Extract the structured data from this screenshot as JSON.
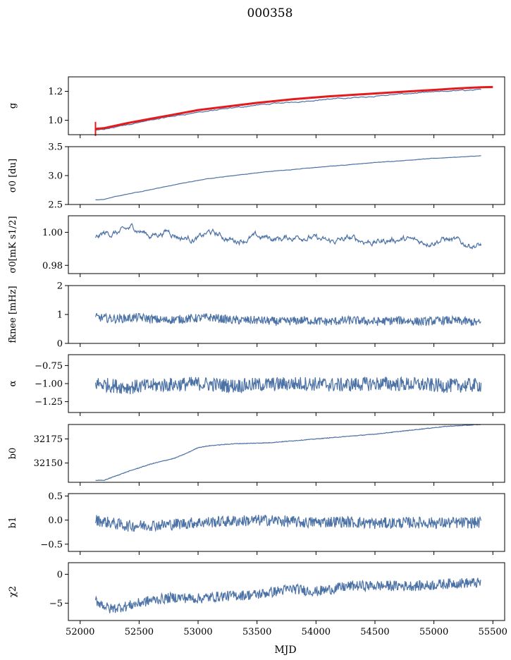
{
  "title": "000358",
  "xlabel": "MJD",
  "colors": {
    "series": "#4c72a6",
    "model": "#e41a1c"
  },
  "chart_data": [
    {
      "type": "line",
      "ylabel": "g",
      "xlim": [
        51900,
        55600
      ],
      "ylim": [
        0.9,
        1.3
      ],
      "yticks": [
        "1.0",
        "1.2"
      ],
      "ytick_values": [
        1.0,
        1.2
      ],
      "series": [
        {
          "color": "#4c72a6",
          "x": [
            52130,
            52200,
            52400,
            52600,
            52800,
            53000,
            53200,
            53500,
            53800,
            54100,
            54400,
            54700,
            55000,
            55200,
            55400
          ],
          "y": [
            0.93,
            0.935,
            0.97,
            1.0,
            1.03,
            1.055,
            1.075,
            1.105,
            1.125,
            1.145,
            1.16,
            1.18,
            1.195,
            1.205,
            1.21
          ]
        },
        {
          "color": "#e41a1c",
          "x": [
            52130,
            52200,
            52400,
            52600,
            52800,
            53000,
            53200,
            53500,
            53800,
            54100,
            54400,
            54700,
            55000,
            55200,
            55400,
            55500
          ],
          "y": [
            0.94,
            0.945,
            0.98,
            1.01,
            1.04,
            1.07,
            1.09,
            1.12,
            1.145,
            1.165,
            1.18,
            1.195,
            1.21,
            1.22,
            1.228,
            1.23
          ]
        }
      ]
    },
    {
      "type": "line",
      "ylabel": "σ0 [du]",
      "xlim": [
        51900,
        55600
      ],
      "ylim": [
        2.5,
        3.5
      ],
      "yticks": [
        "2.5",
        "3.0",
        "3.5"
      ],
      "ytick_values": [
        2.5,
        3.0,
        3.5
      ],
      "series": [
        {
          "color": "#4c72a6",
          "x": [
            52130,
            52200,
            52300,
            52500,
            52800,
            53000,
            53300,
            53600,
            54000,
            54400,
            54800,
            55100,
            55400
          ],
          "y": [
            2.58,
            2.59,
            2.64,
            2.72,
            2.84,
            2.92,
            3.0,
            3.07,
            3.14,
            3.21,
            3.27,
            3.31,
            3.34
          ]
        }
      ]
    },
    {
      "type": "line",
      "ylabel": "σ0[mK s1/2]",
      "xlim": [
        51900,
        55600
      ],
      "ylim": [
        0.975,
        1.01
      ],
      "yticks": [
        "0.98",
        "1.00"
      ],
      "ytick_values": [
        0.98,
        1.0
      ],
      "series": [
        {
          "color": "#4c72a6",
          "x": [
            52130,
            52200,
            52350,
            52450,
            52600,
            52750,
            52850,
            53000,
            53100,
            53300,
            53500,
            53700,
            53900,
            54100,
            54300,
            54500,
            54700,
            54900,
            55100,
            55250,
            55400
          ],
          "y": [
            0.996,
            0.999,
            1.0,
            1.003,
            0.998,
            1.001,
            0.997,
            0.996,
            1.0,
            0.995,
            0.997,
            0.996,
            0.998,
            0.994,
            0.996,
            0.994,
            0.996,
            0.994,
            0.996,
            0.993,
            0.992
          ]
        }
      ]
    },
    {
      "type": "line",
      "ylabel": "fknee [mHz]",
      "xlim": [
        51900,
        55600
      ],
      "ylim": [
        0,
        2
      ],
      "yticks": [
        "0",
        "1",
        "2"
      ],
      "ytick_values": [
        0,
        1,
        2
      ],
      "series": [
        {
          "color": "#4c72a6",
          "x": [
            52130,
            52300,
            52500,
            52700,
            52900,
            53100,
            53300,
            53500,
            53700,
            53900,
            54100,
            54300,
            54500,
            54700,
            54900,
            55100,
            55300,
            55400
          ],
          "y": [
            0.9,
            0.85,
            0.9,
            0.8,
            0.85,
            0.9,
            0.8,
            0.8,
            0.75,
            0.8,
            0.75,
            0.8,
            0.75,
            0.8,
            0.75,
            0.8,
            0.75,
            0.7
          ]
        }
      ]
    },
    {
      "type": "line",
      "ylabel": "α",
      "xlim": [
        51900,
        55600
      ],
      "ylim": [
        -1.4,
        -0.6
      ],
      "yticks": [
        "−0.75",
        "−1.00",
        "−1.25"
      ],
      "ytick_values": [
        -0.75,
        -1.0,
        -1.25
      ],
      "series": [
        {
          "color": "#4c72a6",
          "x": [
            52130,
            52400,
            52700,
            53000,
            53300,
            53600,
            53900,
            54200,
            54500,
            54800,
            55100,
            55400
          ],
          "y": [
            -1.0,
            -1.05,
            -1.02,
            -1.0,
            -1.03,
            -1.01,
            -1.0,
            -1.02,
            -1.0,
            -1.01,
            -1.03,
            -1.02
          ]
        }
      ]
    },
    {
      "type": "line",
      "ylabel": "b0",
      "xlim": [
        51900,
        55600
      ],
      "ylim": [
        32130,
        32190
      ],
      "yticks": [
        "32150",
        "32175"
      ],
      "ytick_values": [
        32150,
        32175
      ],
      "series": [
        {
          "color": "#4c72a6",
          "x": [
            52130,
            52200,
            52400,
            52600,
            52800,
            52900,
            53000,
            53100,
            53300,
            53600,
            53900,
            54200,
            54500,
            54800,
            55100,
            55400
          ],
          "y": [
            32132,
            32132,
            32141,
            32149,
            32155,
            32160,
            32166,
            32168,
            32170,
            32171,
            32174,
            32177,
            32180,
            32184,
            32188,
            32190
          ]
        }
      ]
    },
    {
      "type": "line",
      "ylabel": "b1",
      "xlim": [
        51900,
        55600
      ],
      "ylim": [
        -0.65,
        0.55
      ],
      "yticks": [
        "0.5",
        "0.0",
        "−0.5"
      ],
      "ytick_values": [
        0.5,
        0.0,
        -0.5
      ],
      "series": [
        {
          "color": "#4c72a6",
          "x": [
            52130,
            52400,
            52700,
            53000,
            53300,
            53600,
            53900,
            54200,
            54500,
            54800,
            55100,
            55400
          ],
          "y": [
            0.0,
            -0.12,
            -0.1,
            -0.05,
            -0.02,
            0.0,
            -0.05,
            -0.03,
            -0.07,
            -0.05,
            -0.06,
            -0.05
          ]
        }
      ]
    },
    {
      "type": "line",
      "ylabel": "χ2",
      "xlim": [
        51900,
        55600
      ],
      "ylim": [
        -8,
        2
      ],
      "yticks": [
        "0",
        "−5"
      ],
      "ytick_values": [
        0,
        -5
      ],
      "series": [
        {
          "color": "#4c72a6",
          "x": [
            52130,
            52250,
            52400,
            52600,
            52800,
            53000,
            53200,
            53500,
            53800,
            54000,
            54300,
            54600,
            54900,
            55200,
            55400
          ],
          "y": [
            -4.5,
            -6.0,
            -5.5,
            -4.5,
            -4.0,
            -4.2,
            -3.8,
            -3.5,
            -2.5,
            -3.0,
            -2.0,
            -2.0,
            -2.0,
            -1.5,
            -1.5
          ]
        }
      ]
    }
  ],
  "xticks": [
    "52000",
    "52500",
    "53000",
    "53500",
    "54000",
    "54500",
    "55000",
    "55500"
  ],
  "xtick_values": [
    52000,
    52500,
    53000,
    53500,
    54000,
    54500,
    55000,
    55500
  ]
}
